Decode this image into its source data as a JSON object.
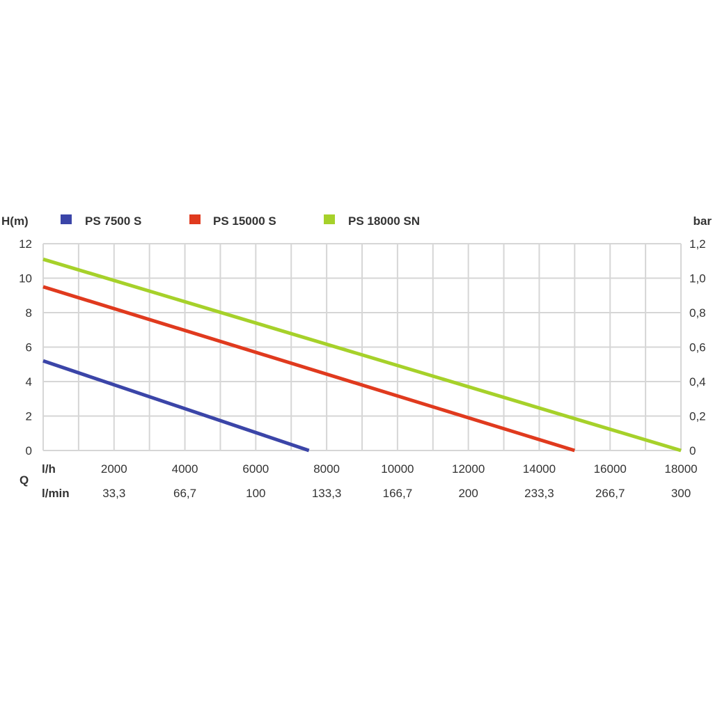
{
  "chart_data": {
    "type": "line",
    "ylabel_left": "H(m)",
    "ylabel_right": "bar",
    "x_axis_group_label": "Q",
    "x_unit_primary": "l/h",
    "x_unit_secondary": "l/min",
    "xlim": [
      0,
      18000
    ],
    "ylim": [
      0,
      12
    ],
    "grid": true,
    "legend_position": "top",
    "y_ticks_left": [
      "12",
      "10",
      "8",
      "6",
      "4",
      "2",
      "0"
    ],
    "y_ticks_right": [
      "1,2",
      "1,0",
      "0,8",
      "0,6",
      "0,4",
      "0,2",
      "0"
    ],
    "x_ticks_primary": [
      "2000",
      "4000",
      "6000",
      "8000",
      "10000",
      "12000",
      "14000",
      "16000",
      "18000"
    ],
    "x_ticks_secondary": [
      "33,3",
      "66,7",
      "100",
      "133,3",
      "166,7",
      "200",
      "233,3",
      "266,7",
      "300"
    ],
    "series": [
      {
        "name": "PS 7500 S",
        "color": "#3b45a8",
        "x": [
          0,
          7500
        ],
        "y": [
          5.2,
          0
        ]
      },
      {
        "name": "PS 15000 S",
        "color": "#e03a1e",
        "x": [
          0,
          15000
        ],
        "y": [
          9.5,
          0
        ]
      },
      {
        "name": "PS 18000 SN",
        "color": "#a6d12a",
        "x": [
          0,
          18000
        ],
        "y": [
          11.1,
          0
        ]
      }
    ]
  }
}
